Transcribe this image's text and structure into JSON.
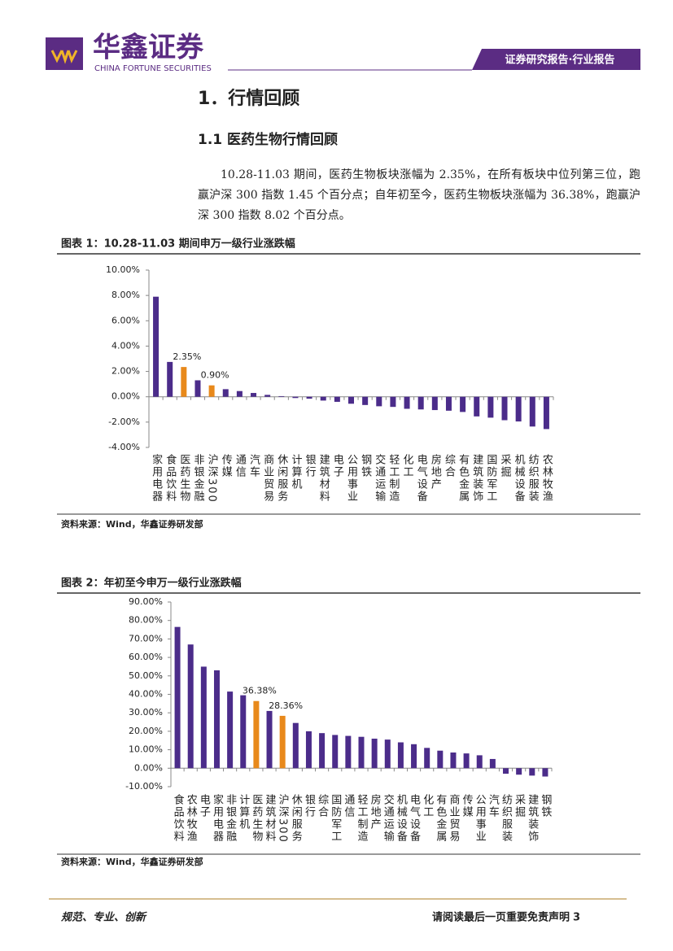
{
  "header": {
    "logo": "华鑫证券",
    "logo_en": "CHINA FORTUNE SECURITIES",
    "report_type": "证券研究报告·行业报告"
  },
  "section_title": "1．行情回顾",
  "subsection_title": "1.1 医药生物行情回顾",
  "paragraph": "10.28-11.03 期间，医药生物板块涨幅为 2.35%，在所有板块中位列第三位，跑赢沪深 300 指数 1.45 个百分点；自年初至今，医药生物板块涨幅为 36.38%，跑赢沪深 300 指数 8.02 个百分点。",
  "chart_data": [
    {
      "type": "bar",
      "title": "图表 1：10.28-11.03 期间申万一级行业涨跌幅",
      "source": "资料来源：Wind，华鑫证券研发部",
      "categories": [
        "家用电器",
        "食品饮料",
        "医药生物",
        "非银金融",
        "沪深300",
        "传媒",
        "通信",
        "汽车",
        "商业贸易",
        "休闲服务",
        "计算机",
        "银行",
        "建筑材料",
        "电子",
        "公用事业",
        "钢铁",
        "交通运输",
        "轻工制造",
        "化工",
        "电气设备",
        "房地产",
        "综合",
        "有色金属",
        "建筑装饰",
        "国防军工",
        "采掘",
        "机械设备",
        "纺织服装",
        "农林牧渔"
      ],
      "values": [
        7.9,
        2.75,
        2.35,
        1.3,
        0.9,
        0.6,
        0.45,
        0.3,
        0.15,
        0.05,
        -0.1,
        -0.15,
        -0.3,
        -0.4,
        -0.55,
        -0.65,
        -0.75,
        -0.8,
        -0.95,
        -1.0,
        -1.05,
        -1.1,
        -1.2,
        -1.55,
        -1.65,
        -1.85,
        -1.95,
        -2.35,
        -2.55
      ],
      "value_labels": [
        null,
        null,
        "2.35%",
        null,
        "0.90%",
        null,
        null,
        null,
        null,
        null,
        null,
        null,
        null,
        null,
        null,
        null,
        null,
        null,
        null,
        null,
        null,
        null,
        null,
        null,
        null,
        null,
        null,
        null,
        null
      ],
      "colors": [
        "#4b2c8a",
        "#4b2c8a",
        "#e8891b",
        "#4b2c8a",
        "#e8891b",
        "#4b2c8a",
        "#4b2c8a",
        "#4b2c8a",
        "#4b2c8a",
        "#4b2c8a",
        "#4b2c8a",
        "#4b2c8a",
        "#4b2c8a",
        "#4b2c8a",
        "#4b2c8a",
        "#4b2c8a",
        "#4b2c8a",
        "#4b2c8a",
        "#4b2c8a",
        "#4b2c8a",
        "#4b2c8a",
        "#4b2c8a",
        "#4b2c8a",
        "#4b2c8a",
        "#4b2c8a",
        "#4b2c8a",
        "#4b2c8a",
        "#4b2c8a",
        "#4b2c8a"
      ],
      "ylim": [
        -4,
        10
      ],
      "yticks": [
        {
          "value": -4,
          "label": "-4.00%"
        },
        {
          "value": -2,
          "label": "-2.00%"
        },
        {
          "value": 0,
          "label": "0.00%"
        },
        {
          "value": 2,
          "label": "2.00%"
        },
        {
          "value": 4,
          "label": "4.00%"
        },
        {
          "value": 6,
          "label": "6.00%"
        },
        {
          "value": 8,
          "label": "8.00%"
        },
        {
          "value": 10,
          "label": "10.00%"
        }
      ]
    },
    {
      "type": "bar",
      "title": "图表 2：年初至今申万一级行业涨跌幅",
      "source": "资料来源：Wind，华鑫证券研发部",
      "categories": [
        "食品饮料",
        "农林牧渔",
        "电子",
        "家用电器",
        "非银金融",
        "计算机",
        "医药生物",
        "建筑材料",
        "沪深300",
        "休闲服务",
        "银行",
        "综合",
        "国防军工",
        "通信",
        "轻工制造",
        "房地产",
        "交通运输",
        "机械设备",
        "电气设备",
        "化工",
        "有色金属",
        "商业贸易",
        "传媒",
        "公用事业",
        "汽车",
        "纺织服装",
        "采掘",
        "建筑装饰",
        "钢铁"
      ],
      "values": [
        76.5,
        67,
        55,
        53,
        41.5,
        39.5,
        36.38,
        31,
        28.36,
        24.5,
        20,
        19,
        18,
        17.5,
        17,
        16,
        15.5,
        14,
        13,
        11,
        9.5,
        8.5,
        8,
        7,
        5,
        -3,
        -3.5,
        -4,
        -4.5
      ],
      "value_labels": [
        null,
        null,
        null,
        null,
        null,
        null,
        "36.38%",
        null,
        "28.36%",
        null,
        null,
        null,
        null,
        null,
        null,
        null,
        null,
        null,
        null,
        null,
        null,
        null,
        null,
        null,
        null,
        null,
        null,
        null,
        null
      ],
      "colors": [
        "#4b2c8a",
        "#4b2c8a",
        "#4b2c8a",
        "#4b2c8a",
        "#4b2c8a",
        "#4b2c8a",
        "#e8891b",
        "#4b2c8a",
        "#e8891b",
        "#4b2c8a",
        "#4b2c8a",
        "#4b2c8a",
        "#4b2c8a",
        "#4b2c8a",
        "#4b2c8a",
        "#4b2c8a",
        "#4b2c8a",
        "#4b2c8a",
        "#4b2c8a",
        "#4b2c8a",
        "#4b2c8a",
        "#4b2c8a",
        "#4b2c8a",
        "#4b2c8a",
        "#4b2c8a",
        "#4b2c8a",
        "#4b2c8a",
        "#4b2c8a",
        "#4b2c8a"
      ],
      "ylim": [
        -10,
        90
      ],
      "yticks": [
        {
          "value": -10,
          "label": "-10.00%"
        },
        {
          "value": 0,
          "label": "0.00%"
        },
        {
          "value": 10,
          "label": "10.00%"
        },
        {
          "value": 20,
          "label": "20.00%"
        },
        {
          "value": 30,
          "label": "30.00%"
        },
        {
          "value": 40,
          "label": "40.00%"
        },
        {
          "value": 50,
          "label": "50.00%"
        },
        {
          "value": 60,
          "label": "60.00%"
        },
        {
          "value": 70,
          "label": "70.00%"
        },
        {
          "value": 80,
          "label": "80.00%"
        },
        {
          "value": 90,
          "label": "90.00%"
        }
      ]
    }
  ],
  "footer": {
    "slogan": "规范、专业、创新",
    "disclaimer": "请阅读最后一页重要免责声明",
    "page": "3"
  }
}
